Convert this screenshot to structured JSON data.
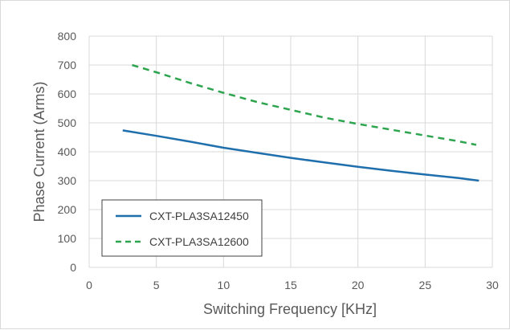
{
  "chart_data": {
    "type": "line",
    "title": "",
    "xlabel": "Switching Frequency [KHz]",
    "ylabel": "Phase Current (Arms)",
    "xlim": [
      0,
      30
    ],
    "ylim": [
      0,
      800
    ],
    "xticks": [
      0,
      5,
      10,
      15,
      20,
      25,
      30
    ],
    "yticks": [
      0,
      100,
      200,
      300,
      400,
      500,
      600,
      700,
      800
    ],
    "grid": true,
    "legend_position": "bottom-left",
    "series": [
      {
        "name": "CXT-PLA3SA12450",
        "color": "#1f6fad",
        "style": "solid",
        "x": [
          2.5,
          5,
          7.5,
          10,
          12.5,
          15,
          17.5,
          20,
          22.5,
          25,
          27.5,
          29
        ],
        "y": [
          474,
          455,
          435,
          414,
          396,
          379,
          363,
          348,
          334,
          321,
          309,
          300
        ]
      },
      {
        "name": "CXT-PLA3SA12600",
        "color": "#2da44e",
        "style": "dashed",
        "x": [
          3.2,
          5,
          7.5,
          10,
          12.5,
          15,
          17.5,
          20,
          22.5,
          25,
          27.5,
          28.8
        ],
        "y": [
          700,
          675,
          638,
          604,
          572,
          545,
          518,
          496,
          476,
          456,
          436,
          424
        ]
      }
    ]
  }
}
